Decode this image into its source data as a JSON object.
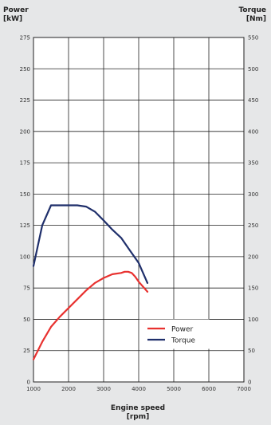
{
  "chart_data": {
    "type": "line",
    "left_axis_title": [
      "Power",
      "[kW]"
    ],
    "right_axis_title": [
      "Torque",
      "[Nm]"
    ],
    "x_axis_title": [
      "Engine speed",
      "[rpm]"
    ],
    "xlim": [
      1000,
      7000
    ],
    "x_ticks": [
      "1000",
      "2000",
      "3000",
      "4000",
      "5000",
      "6000",
      "7000"
    ],
    "ylim_left": [
      0,
      275
    ],
    "y_ticks_left": [
      "0",
      "25",
      "50",
      "75",
      "100",
      "125",
      "150",
      "175",
      "200",
      "225",
      "250",
      "275"
    ],
    "ylim_right": [
      0,
      550
    ],
    "y_ticks_right": [
      "0",
      "50",
      "100",
      "150",
      "200",
      "250",
      "300",
      "350",
      "400",
      "450",
      "500",
      "550"
    ],
    "grid": true,
    "legend_position": "bottom-right",
    "colors": {
      "power": "#e8312f",
      "torque": "#1f2f6b",
      "grid": "#222222",
      "plot_bg": "#ffffff",
      "page_bg": "#e6e7e8"
    },
    "series": [
      {
        "name": "Power",
        "axis": "left",
        "color": "#e8312f",
        "x": [
          1000,
          1250,
          1500,
          1750,
          2000,
          2250,
          2500,
          2750,
          3000,
          3250,
          3500,
          3600,
          3700,
          3800,
          3900,
          4000,
          4250
        ],
        "y": [
          18,
          32,
          44,
          52,
          59,
          66,
          73,
          79,
          83,
          86,
          87,
          88,
          88,
          87,
          84,
          80,
          72
        ]
      },
      {
        "name": "Torque",
        "axis": "right",
        "color": "#1f2f6b",
        "x": [
          1000,
          1250,
          1500,
          1750,
          2000,
          2250,
          2500,
          2750,
          3000,
          3250,
          3500,
          3750,
          4000,
          4250
        ],
        "y": [
          185,
          250,
          282,
          282,
          282,
          282,
          280,
          272,
          258,
          243,
          230,
          210,
          190,
          158
        ]
      }
    ]
  }
}
